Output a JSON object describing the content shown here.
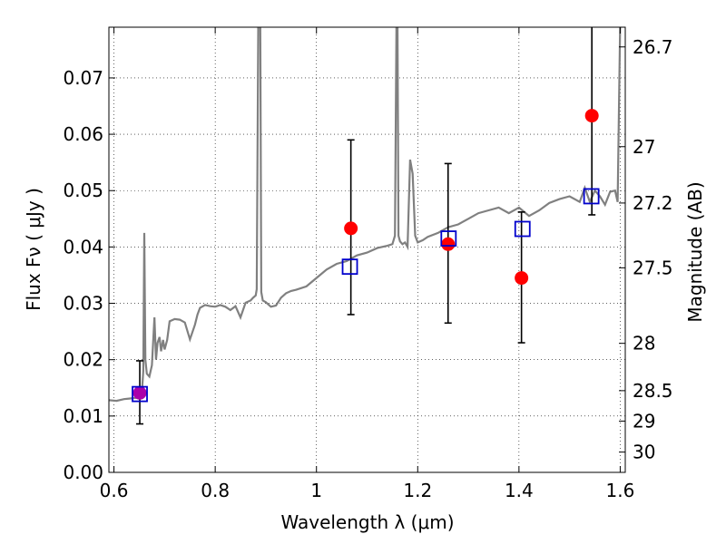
{
  "chart_data": {
    "type": "scatter",
    "xlabel": "Wavelength  λ (μm)",
    "ylabel": "Flux  Fν  ( μJy )",
    "y2label": "Magnitude (AB)",
    "xlim": [
      0.59,
      1.61
    ],
    "ylim": [
      0.0,
      0.079
    ],
    "xticks": [
      0.6,
      0.8,
      1.0,
      1.2,
      1.4,
      1.6
    ],
    "xtick_labels": [
      "0.6",
      "0.8",
      "1",
      "1.2",
      "1.4",
      "1.6"
    ],
    "yticks": [
      0.0,
      0.01,
      0.02,
      0.03,
      0.04,
      0.05,
      0.06,
      0.07
    ],
    "ytick_labels": [
      "0.00",
      "0.01",
      "0.02",
      "0.03",
      "0.04",
      "0.05",
      "0.06",
      "0.07"
    ],
    "y2ticks": [
      {
        "label": "26.7",
        "flux": 0.0755
      },
      {
        "label": "27",
        "flux": 0.0578
      },
      {
        "label": "27.2",
        "flux": 0.0478
      },
      {
        "label": "27.5",
        "flux": 0.0363
      },
      {
        "label": "28",
        "flux": 0.0229
      },
      {
        "label": "28.5",
        "flux": 0.0145
      },
      {
        "label": "29",
        "flux": 0.0091
      },
      {
        "label": "30",
        "flux": 0.0036
      }
    ],
    "grid": true,
    "grid_style": "dotted",
    "colors": {
      "model": "#808080",
      "observed": "#ff0000",
      "synthetic": "#0000cc",
      "errorbar": "#000000",
      "overlap": "#aa00aa"
    },
    "series": [
      {
        "style": "line",
        "color": "#808080",
        "x": [
          0.59,
          0.605,
          0.62,
          0.63,
          0.64,
          0.65,
          0.655,
          0.658,
          0.66,
          0.662,
          0.665,
          0.67,
          0.675,
          0.68,
          0.683,
          0.686,
          0.69,
          0.693,
          0.697,
          0.7,
          0.705,
          0.71,
          0.72,
          0.73,
          0.74,
          0.75,
          0.76,
          0.765,
          0.77,
          0.78,
          0.79,
          0.8,
          0.81,
          0.82,
          0.83,
          0.84,
          0.85,
          0.86,
          0.87,
          0.875,
          0.88,
          0.882,
          0.885,
          0.887,
          0.889,
          0.891,
          0.894,
          0.9,
          0.91,
          0.92,
          0.93,
          0.94,
          0.95,
          0.96,
          0.98,
          1.0,
          1.02,
          1.04,
          1.06,
          1.08,
          1.1,
          1.12,
          1.14,
          1.15,
          1.155,
          1.158,
          1.16,
          1.162,
          1.165,
          1.17,
          1.175,
          1.18,
          1.185,
          1.19,
          1.195,
          1.2,
          1.21,
          1.22,
          1.24,
          1.26,
          1.28,
          1.3,
          1.32,
          1.34,
          1.36,
          1.38,
          1.4,
          1.42,
          1.44,
          1.46,
          1.48,
          1.5,
          1.52,
          1.53,
          1.54,
          1.55,
          1.56,
          1.57,
          1.58,
          1.59,
          1.595,
          1.6,
          1.605,
          1.61
        ],
        "y": [
          0.0128,
          0.0127,
          0.013,
          0.0131,
          0.0132,
          0.0133,
          0.014,
          0.018,
          0.0425,
          0.02,
          0.0175,
          0.017,
          0.019,
          0.0275,
          0.02,
          0.023,
          0.024,
          0.0215,
          0.0235,
          0.0218,
          0.0235,
          0.0268,
          0.0272,
          0.0271,
          0.0266,
          0.0236,
          0.0262,
          0.028,
          0.0292,
          0.0297,
          0.0295,
          0.0294,
          0.0297,
          0.0294,
          0.0288,
          0.0295,
          0.0275,
          0.0301,
          0.0305,
          0.031,
          0.0314,
          0.0325,
          0.08,
          0.08,
          0.08,
          0.032,
          0.0305,
          0.0302,
          0.0294,
          0.0296,
          0.031,
          0.0318,
          0.0322,
          0.0324,
          0.033,
          0.0345,
          0.036,
          0.037,
          0.0375,
          0.0385,
          0.039,
          0.0398,
          0.0402,
          0.0405,
          0.042,
          0.08,
          0.08,
          0.042,
          0.041,
          0.0405,
          0.0408,
          0.04,
          0.0555,
          0.053,
          0.042,
          0.0408,
          0.0412,
          0.0418,
          0.0425,
          0.0435,
          0.044,
          0.045,
          0.046,
          0.0465,
          0.047,
          0.046,
          0.047,
          0.0455,
          0.0465,
          0.0478,
          0.0485,
          0.049,
          0.048,
          0.0505,
          0.048,
          0.05,
          0.049,
          0.0475,
          0.0498,
          0.05,
          0.048,
          0.08,
          0.08,
          0.08
        ]
      },
      {
        "style": "errorbar-points",
        "color": "#ff0000",
        "x": [
          0.651,
          1.068,
          1.26,
          1.405,
          1.544
        ],
        "y": [
          0.0141,
          0.0433,
          0.0405,
          0.0345,
          0.0633
        ],
        "yerr_low": [
          0.0086,
          0.028,
          0.0265,
          0.023,
          0.0457
        ],
        "yerr_high": [
          0.0198,
          0.059,
          0.0548,
          0.0462,
          0.08
        ]
      },
      {
        "style": "open-squares",
        "color": "#0000cc",
        "x": [
          0.651,
          1.066,
          1.261,
          1.407,
          1.543
        ],
        "y": [
          0.0139,
          0.0365,
          0.0415,
          0.0432,
          0.049
        ]
      }
    ]
  }
}
